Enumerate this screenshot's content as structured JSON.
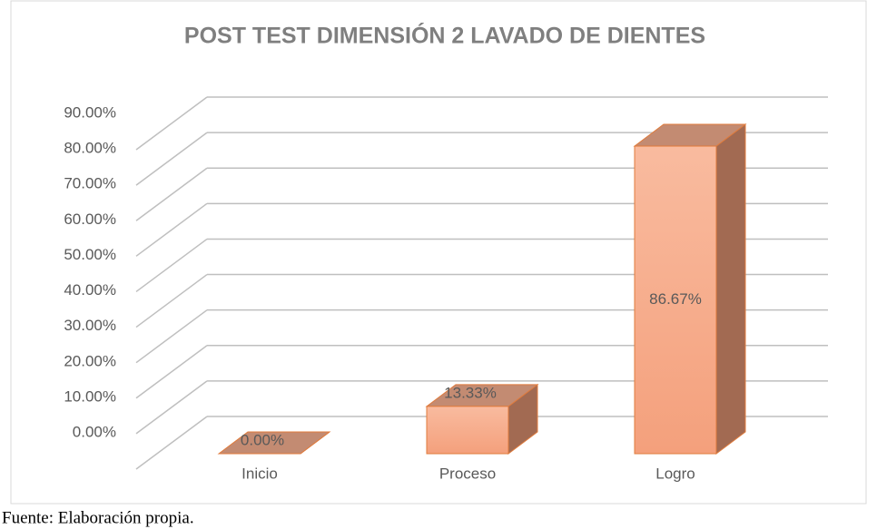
{
  "chart_data": {
    "type": "bar3d",
    "title": "POST TEST DIMENSIÓN 2 LAVADO DE DIENTES",
    "categories": [
      "Inicio",
      "Proceso",
      "Logro"
    ],
    "values": [
      0,
      13.33,
      86.67
    ],
    "value_labels": [
      "0.00%",
      "13.33%",
      "86.67%"
    ],
    "color": "#f7ad8c",
    "ylim": [
      0,
      90
    ],
    "yticks": [
      {
        "value": 0,
        "label": "0.00%"
      },
      {
        "value": 10,
        "label": "10.00%"
      },
      {
        "value": 20,
        "label": "20.00%"
      },
      {
        "value": 30,
        "label": "30.00%"
      },
      {
        "value": 40,
        "label": "40.00%"
      },
      {
        "value": 50,
        "label": "50.00%"
      },
      {
        "value": 60,
        "label": "60.00%"
      },
      {
        "value": 70,
        "label": "70.00%"
      },
      {
        "value": 80,
        "label": "80.00%"
      },
      {
        "value": 90,
        "label": "90.00%"
      }
    ],
    "grid": true
  },
  "source": "Fuente: Elaboración propia."
}
